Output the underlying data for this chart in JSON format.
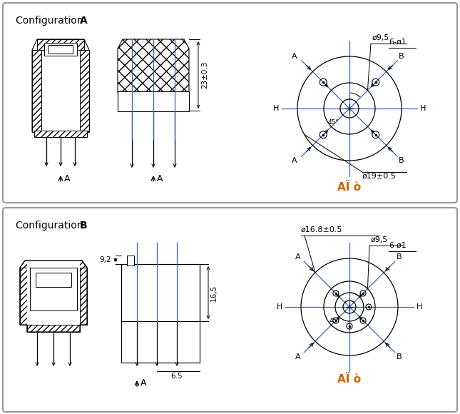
{
  "bg_color": "#ffffff",
  "box_color": "#999999",
  "lc": "#000000",
  "bc": "#3366bb",
  "orange": "#cc6600",
  "config_a": "Configuration A",
  "config_b": "Configuration B",
  "bold_a": "A",
  "bold_b": "B",
  "dim_23": "23±0.3",
  "dim_19": "ø19±0.5",
  "dim_9_5_a": "ø9,5",
  "dim_9_5_b": "ø9,5",
  "dim_6phi1": "6-ø1",
  "dim_16_8": "ø16.8±0.5",
  "dim_9_2": "9,2",
  "dim_16_5": "16,5",
  "dim_6_5": "6.5",
  "label_view": "AÏ ò",
  "font_title": 10,
  "font_dim": 8,
  "font_label": 8
}
